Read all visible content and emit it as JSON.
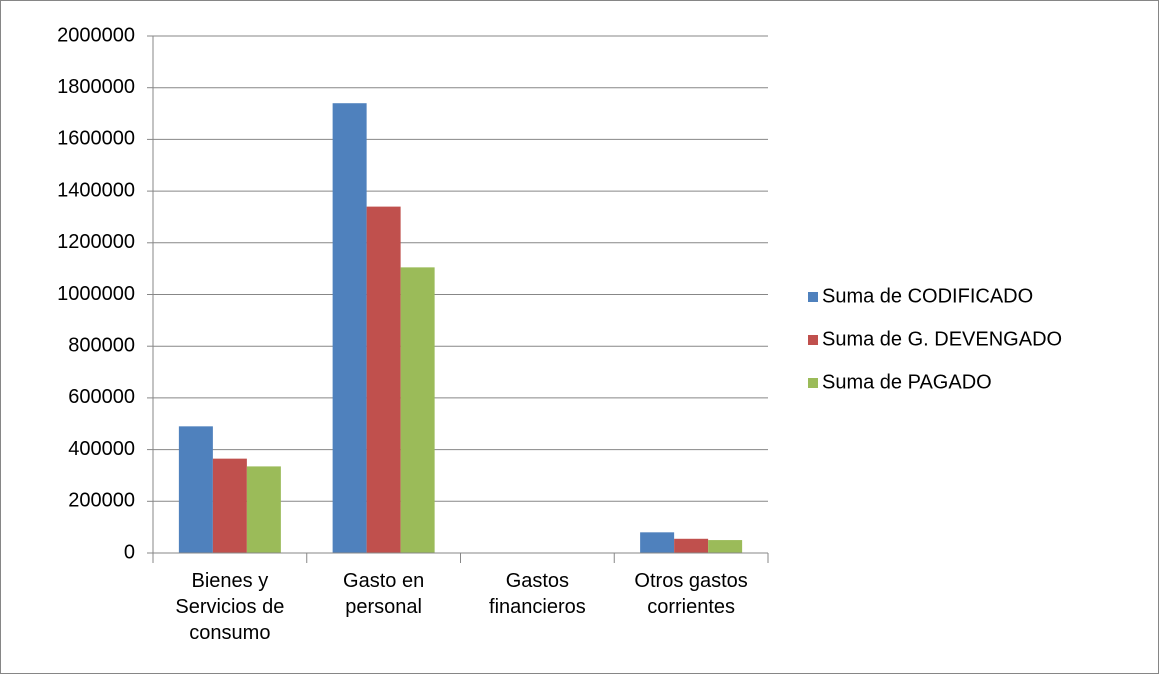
{
  "chart_data": {
    "type": "bar",
    "categories": [
      "Bienes y Servicios de consumo",
      "Gasto en personal",
      "Gastos financieros",
      "Otros gastos corrientes"
    ],
    "series": [
      {
        "name": "Suma de CODIFICADO",
        "color": "#4f81bd",
        "values": [
          490000,
          1740000,
          0,
          80000
        ]
      },
      {
        "name": "Suma de G. DEVENGADO",
        "color": "#c0504d",
        "values": [
          365000,
          1340000,
          0,
          55000
        ]
      },
      {
        "name": "Suma de PAGADO",
        "color": "#9bbb59",
        "values": [
          335000,
          1105000,
          0,
          50000
        ]
      }
    ],
    "ylim": [
      0,
      2000000
    ],
    "yticks": [
      0,
      200000,
      400000,
      600000,
      800000,
      1000000,
      1200000,
      1400000,
      1600000,
      1800000,
      2000000
    ],
    "grid": true,
    "legend": "right"
  }
}
